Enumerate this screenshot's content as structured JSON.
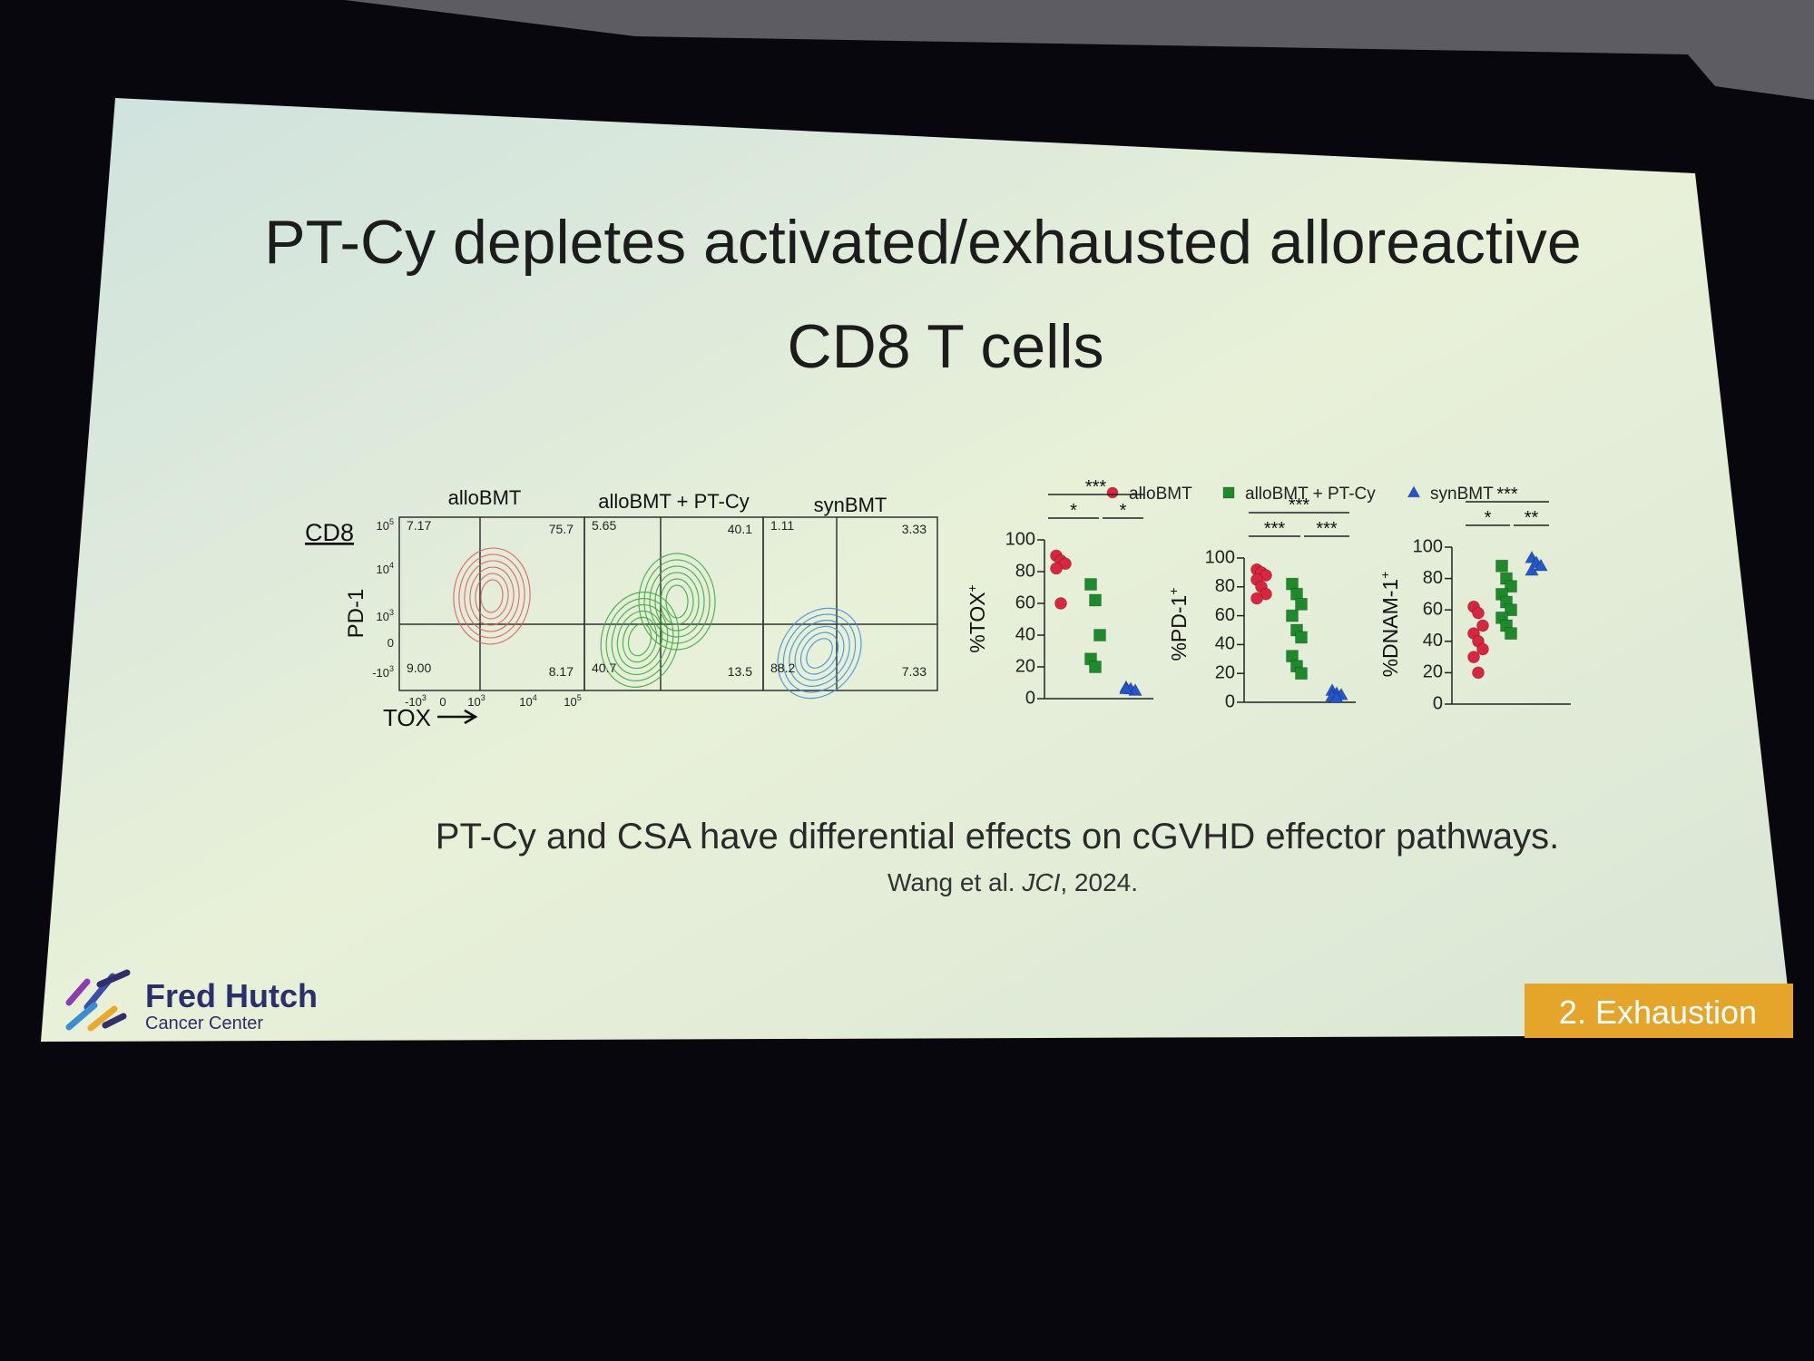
{
  "slide": {
    "title": [
      "PT-Cy depletes activated/exhausted alloreactive",
      "CD8 T cells"
    ],
    "flow": {
      "row_label": "CD8",
      "y_label": "PD-1",
      "x_label": "TOX",
      "panels": [
        {
          "name": "alloBMT",
          "quadrants": [
            "7.17",
            "75.7",
            "9.00",
            "8.17"
          ]
        },
        {
          "name": "alloBMT + PT-Cy",
          "quadrants": [
            "5.65",
            "40.1",
            "40.7",
            "13.5"
          ]
        },
        {
          "name": "synBMT",
          "quadrants": [
            "1.11",
            "3.33",
            "88.2",
            "7.33"
          ]
        }
      ],
      "y_ticks": [
        {
          "base": "10",
          "exp": "5"
        },
        {
          "base": "10",
          "exp": "4"
        },
        {
          "base": "10",
          "exp": "3"
        },
        {
          "base": "0"
        },
        {
          "base": "-10",
          "exp": "3"
        }
      ],
      "x_ticks": [
        {
          "base": "-10",
          "exp": "3"
        },
        {
          "base": "0"
        },
        {
          "base": "10",
          "exp": "3"
        },
        {
          "base": "10",
          "exp": "4"
        },
        {
          "base": "10",
          "exp": "5"
        }
      ]
    },
    "legend": [
      {
        "name": "alloBMT",
        "color": "#d7263d",
        "marker": "circle"
      },
      {
        "name": "alloBMT + PT-Cy",
        "color": "#1f8a2c",
        "marker": "square"
      },
      {
        "name": "synBMT",
        "color": "#2456c8",
        "marker": "triangle"
      }
    ],
    "plots": [
      {
        "y_label": "%TOX",
        "y_label_sup": "+",
        "ylim": [
          0,
          100
        ],
        "yticks": [
          0,
          20,
          40,
          60,
          80,
          100
        ],
        "significance": [
          "***",
          "*",
          "*"
        ],
        "groups": [
          {
            "values": [
              90,
              87,
              85,
              82,
              60
            ]
          },
          {
            "values": [
              72,
              62,
              40,
              25,
              20
            ]
          },
          {
            "values": [
              7,
              6,
              5,
              6
            ]
          }
        ]
      },
      {
        "y_label": "%PD-1",
        "y_label_sup": "+",
        "ylim": [
          0,
          100
        ],
        "yticks": [
          0,
          20,
          40,
          60,
          80,
          100
        ],
        "significance": [
          "***",
          "***",
          "***"
        ],
        "groups": [
          {
            "values": [
              92,
              90,
              88,
              85,
              80,
              75,
              72
            ]
          },
          {
            "values": [
              82,
              75,
              68,
              60,
              50,
              45,
              32,
              25,
              20
            ]
          },
          {
            "values": [
              8,
              6,
              5,
              4,
              3
            ]
          }
        ]
      },
      {
        "y_label": "%DNAM-1",
        "y_label_sup": "+",
        "ylim": [
          0,
          100
        ],
        "yticks": [
          0,
          20,
          40,
          60,
          80,
          100
        ],
        "significance": [
          "***",
          "*",
          "**"
        ],
        "groups": [
          {
            "values": [
              62,
              58,
              50,
              45,
              40,
              35,
              30,
              20
            ]
          },
          {
            "values": [
              88,
              80,
              75,
              70,
              65,
              60,
              55,
              50,
              45
            ]
          },
          {
            "values": [
              93,
              90,
              88,
              85
            ]
          }
        ]
      }
    ],
    "caption": "PT-Cy and CSA have differential effects on cGVHD effector pathways.",
    "citation": {
      "authors": "Wang et al. ",
      "journal": "JCI",
      "rest": ", 2024."
    },
    "logo": {
      "name": "Fred Hutch",
      "sub": "Cancer Center"
    },
    "tag": "2. Exhaustion"
  }
}
